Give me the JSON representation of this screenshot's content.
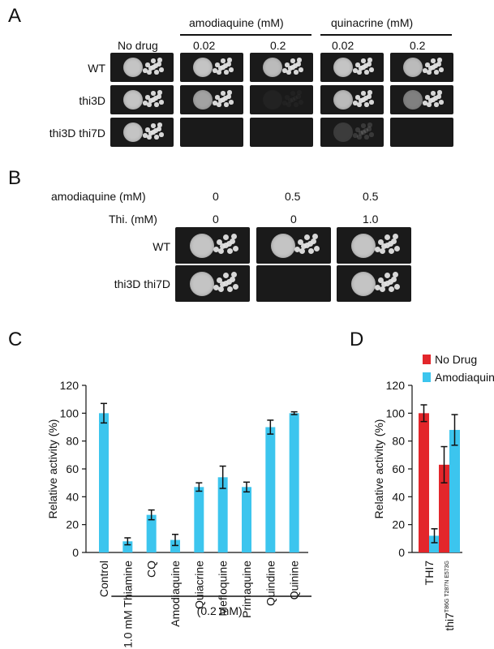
{
  "panelA": {
    "letter": "A",
    "group_headers": [
      "amodiaquine (mM)",
      "quinacrine (mM)"
    ],
    "column_labels": [
      "No drug",
      "0.02",
      "0.2",
      "0.02",
      "0.2"
    ],
    "strains": [
      "WT",
      "thi3D",
      "thi3D thi7D"
    ],
    "growth": [
      [
        1.0,
        1.0,
        0.95,
        1.0,
        0.95
      ],
      [
        1.0,
        0.8,
        0.05,
        0.95,
        0.6
      ],
      [
        1.0,
        0.0,
        0.0,
        0.2,
        0.0
      ]
    ]
  },
  "panelB": {
    "letter": "B",
    "row_labels": [
      "amodiaquine (mM)",
      "Thi. (mM)"
    ],
    "amodiaquine_values": [
      "0",
      "0.5",
      "0.5"
    ],
    "thiamine_values": [
      "0",
      "0",
      "1.0"
    ],
    "strains": [
      "WT",
      "thi3D thi7D"
    ],
    "growth": [
      [
        1.0,
        1.0,
        1.0
      ],
      [
        1.0,
        0.0,
        1.0
      ]
    ]
  },
  "panelC": {
    "letter": "C",
    "bracket_label": "(0.2 mM)",
    "chart_data": {
      "type": "bar",
      "categories": [
        "Control",
        "1.0 mM Thiamine",
        "CQ",
        "Amodiaquine",
        "Quiacrine",
        "Mefloquine",
        "Primaquine",
        "Quindine",
        "Quinine"
      ],
      "values": [
        100,
        8,
        27,
        9,
        47,
        54,
        47,
        90,
        100
      ],
      "errors": [
        7,
        2.5,
        3.5,
        4,
        3,
        8,
        3.5,
        5,
        1
      ],
      "ylabel": "Relative activity (%)",
      "ylim": [
        0,
        120
      ],
      "yticks": [
        0,
        20,
        40,
        60,
        80,
        100,
        120
      ],
      "color": "#3cc5ee",
      "grid": false
    }
  },
  "panelD": {
    "letter": "D",
    "chart_data": {
      "type": "bar",
      "categories": [
        "THI7",
        "thi7"
      ],
      "category_superscript": [
        "",
        "T86G T287N E573G"
      ],
      "series": [
        {
          "name": "No Drug",
          "values": [
            100,
            63
          ],
          "errors": [
            6,
            13
          ],
          "color": "#e3262b"
        },
        {
          "name": "Amodiaquine",
          "values": [
            12,
            88
          ],
          "errors": [
            5,
            11
          ],
          "color": "#3cc5ee"
        }
      ],
      "ylabel": "Relative activity (%)",
      "ylim": [
        0,
        120
      ],
      "yticks": [
        0,
        20,
        40,
        60,
        80,
        100,
        120
      ],
      "legend": "top-right",
      "grid": false
    }
  }
}
